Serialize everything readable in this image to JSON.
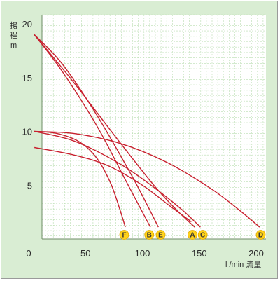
{
  "chart_data": {
    "type": "line",
    "title": "",
    "ylabel": "揚程 m",
    "ylabel_lines": [
      "揚",
      "程",
      "m"
    ],
    "xlabel": "l /min 流量",
    "xlim": [
      0,
      210
    ],
    "ylim": [
      0,
      20
    ],
    "xticks": [
      0,
      50,
      100,
      150,
      200
    ],
    "yticks": [
      5,
      10,
      15,
      20
    ],
    "grid": true,
    "colors": {
      "background": "#d9edd3",
      "plot_area": "#ffffff",
      "curve": "#c8202e",
      "badge": "#ffd21a",
      "grid": "#b9ddb0"
    },
    "series": [
      {
        "name": "A",
        "label_x": 144,
        "points": [
          [
            5,
            19
          ],
          [
            40,
            14.5
          ],
          [
            80,
            9
          ],
          [
            110,
            5
          ],
          [
            130,
            2.7
          ],
          [
            146,
            1.1
          ]
        ]
      },
      {
        "name": "B",
        "label_x": 106,
        "points": [
          [
            5,
            19
          ],
          [
            30,
            15.5
          ],
          [
            60,
            10.5
          ],
          [
            85,
            5.5
          ],
          [
            100,
            2.5
          ],
          [
            107,
            1.1
          ]
        ]
      },
      {
        "name": "C",
        "label_x": 153,
        "points": [
          [
            5,
            10
          ],
          [
            40,
            9.1
          ],
          [
            80,
            7
          ],
          [
            110,
            4.8
          ],
          [
            135,
            2.7
          ],
          [
            151,
            1.1
          ]
        ]
      },
      {
        "name": "D",
        "label_x": 204,
        "points": [
          [
            5,
            10
          ],
          [
            40,
            9.8
          ],
          [
            80,
            8.9
          ],
          [
            120,
            7.2
          ],
          [
            160,
            4.7
          ],
          [
            185,
            2.7
          ],
          [
            203,
            1.1
          ]
        ]
      },
      {
        "name": "E",
        "label_x": 116,
        "points": [
          [
            5,
            19
          ],
          [
            30,
            16.2
          ],
          [
            60,
            11.5
          ],
          [
            90,
            6
          ],
          [
            105,
            3
          ],
          [
            114,
            1.1
          ]
        ]
      },
      {
        "name": "F",
        "label_x": 84,
        "points": [
          [
            5,
            10
          ],
          [
            25,
            9.8
          ],
          [
            45,
            9
          ],
          [
            60,
            7.5
          ],
          [
            72,
            5.2
          ],
          [
            80,
            2.8
          ],
          [
            85,
            1.1
          ]
        ]
      },
      {
        "name": "",
        "points": [
          [
            5,
            8.5
          ],
          [
            40,
            7.8
          ],
          [
            70,
            6.8
          ],
          [
            100,
            5
          ],
          [
            125,
            3
          ],
          [
            143,
            1.6
          ]
        ]
      }
    ],
    "badge_y": 0.55
  }
}
